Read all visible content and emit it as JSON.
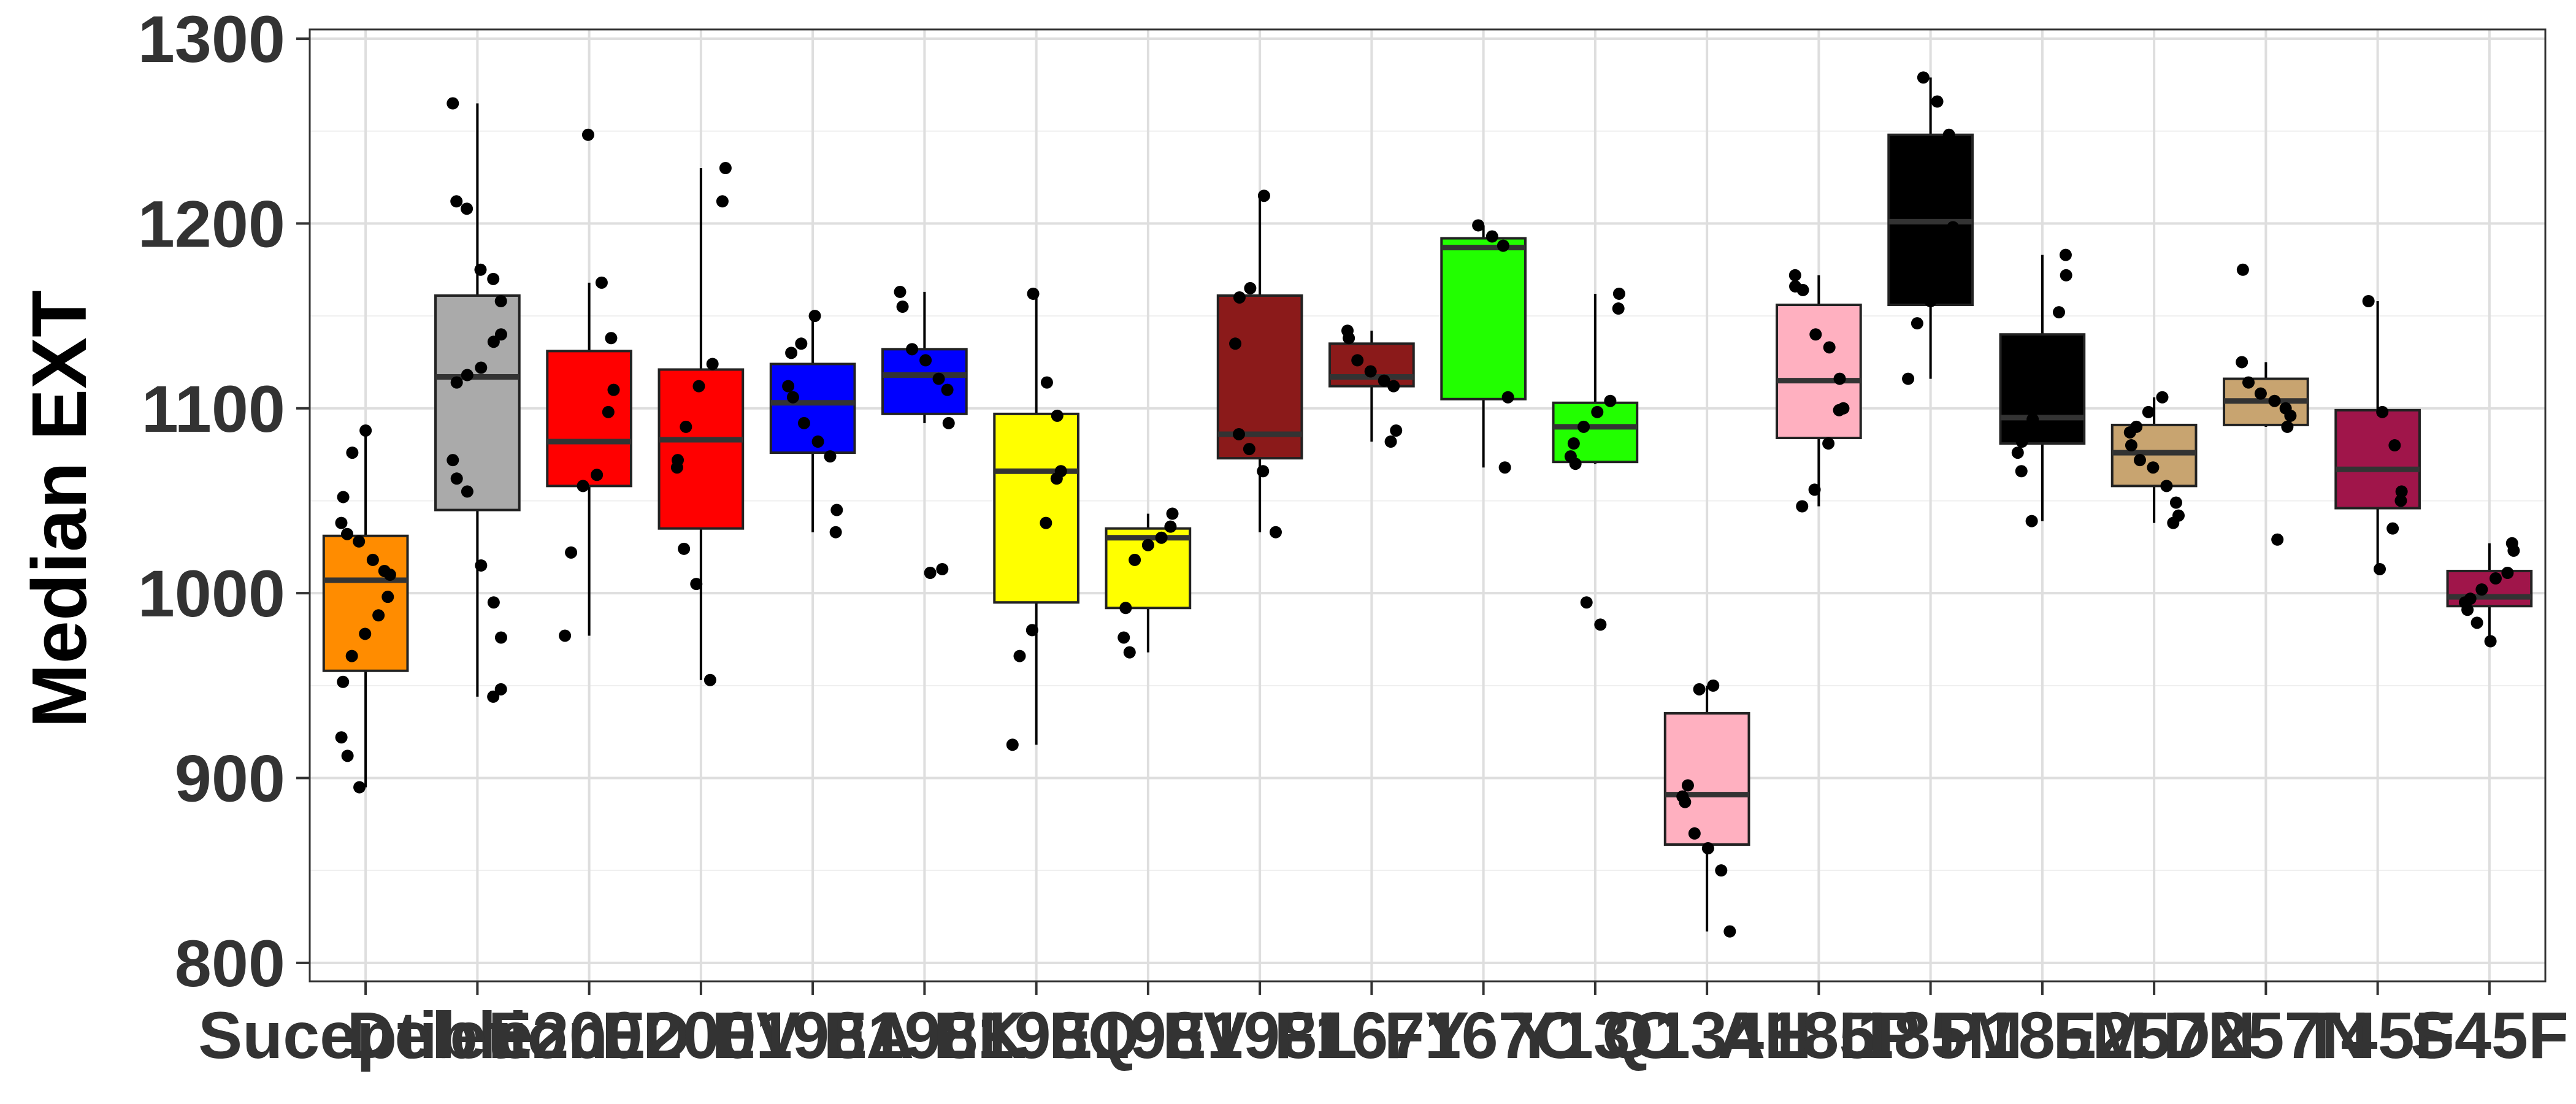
{
  "chart_data": {
    "type": "boxplot",
    "ylabel": "Median EXT",
    "xlabel": "",
    "ylim": [
      790,
      1305
    ],
    "yticks": [
      800,
      900,
      1000,
      1100,
      1200,
      1300
    ],
    "grid": true,
    "legend": "none",
    "categories": [
      {
        "label": "Suceptible",
        "color": "#FF8C00",
        "q1": 958,
        "median": 1007,
        "q3": 1031,
        "whisker_low": 895,
        "whisker_high": 1088,
        "points": [
          1088,
          1076,
          1052,
          1038,
          1032,
          1028,
          1018,
          1012,
          1010,
          998,
          988,
          978,
          966,
          952,
          922,
          912,
          895
        ]
      },
      {
        "label": "Deletion",
        "color": "#AAAAAA",
        "q1": 1045,
        "median": 1117,
        "q3": 1161,
        "whisker_low": 944,
        "whisker_high": 1265,
        "points": [
          1265,
          1212,
          1208,
          1175,
          1170,
          1158,
          1140,
          1136,
          1122,
          1118,
          1114,
          1072,
          1062,
          1055,
          1015,
          995,
          976,
          948,
          944
        ]
      },
      {
        "label": "E200D",
        "color": "#FF0000",
        "q1": 1058,
        "median": 1082,
        "q3": 1131,
        "whisker_low": 977,
        "whisker_high": 1168,
        "points": [
          1248,
          1168,
          1138,
          1110,
          1098,
          1064,
          1058,
          1022,
          977
        ]
      },
      {
        "label": "E200V",
        "color": "#FF0000",
        "q1": 1035,
        "median": 1083,
        "q3": 1121,
        "whisker_low": 953,
        "whisker_high": 1230,
        "points": [
          1230,
          1212,
          1124,
          1112,
          1090,
          1072,
          1068,
          1024,
          1005,
          953
        ]
      },
      {
        "label": "E198A",
        "color": "#0000FF",
        "q1": 1076,
        "median": 1103,
        "q3": 1124,
        "whisker_low": 1033,
        "whisker_high": 1150,
        "points": [
          1150,
          1135,
          1130,
          1112,
          1106,
          1092,
          1082,
          1074,
          1045,
          1033
        ]
      },
      {
        "label": "E198K",
        "color": "#0000FF",
        "q1": 1097,
        "median": 1118,
        "q3": 1132,
        "whisker_low": 1092,
        "whisker_high": 1163,
        "points": [
          1163,
          1155,
          1132,
          1126,
          1116,
          1110,
          1092,
          1013,
          1011
        ]
      },
      {
        "label": "E198Q",
        "color": "#FFFF00",
        "q1": 995,
        "median": 1066,
        "q3": 1097,
        "whisker_low": 918,
        "whisker_high": 1162,
        "points": [
          1162,
          1114,
          1096,
          1066,
          1062,
          1038,
          980,
          966,
          918
        ]
      },
      {
        "label": "E198V",
        "color": "#FFFF00",
        "q1": 992,
        "median": 1030,
        "q3": 1035,
        "whisker_low": 968,
        "whisker_high": 1043,
        "points": [
          1043,
          1036,
          1030,
          1026,
          1018,
          992,
          976,
          968
        ]
      },
      {
        "label": "E198L",
        "color": "#8B1A1A",
        "q1": 1073,
        "median": 1086,
        "q3": 1161,
        "whisker_low": 1033,
        "whisker_high": 1215,
        "points": [
          1215,
          1165,
          1160,
          1135,
          1086,
          1078,
          1066,
          1033
        ]
      },
      {
        "label": "F167Y",
        "color": "#8B1A1A",
        "q1": 1112,
        "median": 1117,
        "q3": 1135,
        "whisker_low": 1082,
        "whisker_high": 1142,
        "points": [
          1142,
          1138,
          1126,
          1120,
          1115,
          1112,
          1088,
          1082
        ]
      },
      {
        "label": "F167C",
        "color": "#22FF00",
        "q1": 1105,
        "median": 1187,
        "q3": 1192,
        "whisker_low": 1068,
        "whisker_high": 1199,
        "points": [
          1199,
          1193,
          1188,
          1106,
          1068
        ]
      },
      {
        "label": "Y13C",
        "color": "#22FF00",
        "q1": 1071,
        "median": 1090,
        "q3": 1103,
        "whisker_low": 1070,
        "whisker_high": 1162,
        "points": [
          1162,
          1154,
          1104,
          1098,
          1090,
          1081,
          1074,
          1070,
          995,
          983
        ]
      },
      {
        "label": "Q134H",
        "color": "#FFB0C0",
        "q1": 864,
        "median": 891,
        "q3": 935,
        "whisker_low": 817,
        "whisker_high": 950,
        "points": [
          950,
          948,
          896,
          890,
          887,
          870,
          862,
          850,
          817
        ]
      },
      {
        "label": "A185P",
        "color": "#FFB0C0",
        "q1": 1084,
        "median": 1115,
        "q3": 1156,
        "whisker_low": 1047,
        "whisker_high": 1172,
        "points": [
          1172,
          1166,
          1164,
          1140,
          1133,
          1116,
          1100,
          1099,
          1081,
          1056,
          1047
        ]
      },
      {
        "label": "I185M",
        "color": "#000000",
        "q1": 1156,
        "median": 1201,
        "q3": 1248,
        "whisker_low": 1116,
        "whisker_high": 1279,
        "points": [
          1279,
          1266,
          1248,
          1222,
          1198,
          1168,
          1158,
          1146,
          1116
        ]
      },
      {
        "label": "P185M",
        "color": "#000000",
        "q1": 1081,
        "median": 1095,
        "q3": 1140,
        "whisker_low": 1039,
        "whisker_high": 1183,
        "points": [
          1183,
          1172,
          1152,
          1120,
          1094,
          1082,
          1076,
          1066,
          1039
        ]
      },
      {
        "label": "E257N",
        "color": "#C8A470",
        "q1": 1058,
        "median": 1076,
        "q3": 1091,
        "whisker_low": 1038,
        "whisker_high": 1106,
        "points": [
          1106,
          1098,
          1090,
          1087,
          1080,
          1072,
          1068,
          1058,
          1049,
          1042,
          1038
        ]
      },
      {
        "label": "D257N",
        "color": "#C8A470",
        "q1": 1091,
        "median": 1104,
        "q3": 1116,
        "whisker_low": 1090,
        "whisker_high": 1125,
        "points": [
          1175,
          1125,
          1114,
          1108,
          1104,
          1100,
          1096,
          1090,
          1029
        ]
      },
      {
        "label": "T45F",
        "color": "#A0154A",
        "q1": 1046,
        "median": 1067,
        "q3": 1099,
        "whisker_low": 1013,
        "whisker_high": 1158,
        "points": [
          1158,
          1098,
          1080,
          1055,
          1050,
          1035,
          1013
        ]
      },
      {
        "label": "S45F",
        "color": "#A0154A",
        "q1": 993,
        "median": 998,
        "q3": 1012,
        "whisker_low": 974,
        "whisker_high": 1027,
        "points": [
          1027,
          1023,
          1011,
          1008,
          1002,
          997,
          995,
          991,
          984,
          974
        ]
      }
    ]
  }
}
